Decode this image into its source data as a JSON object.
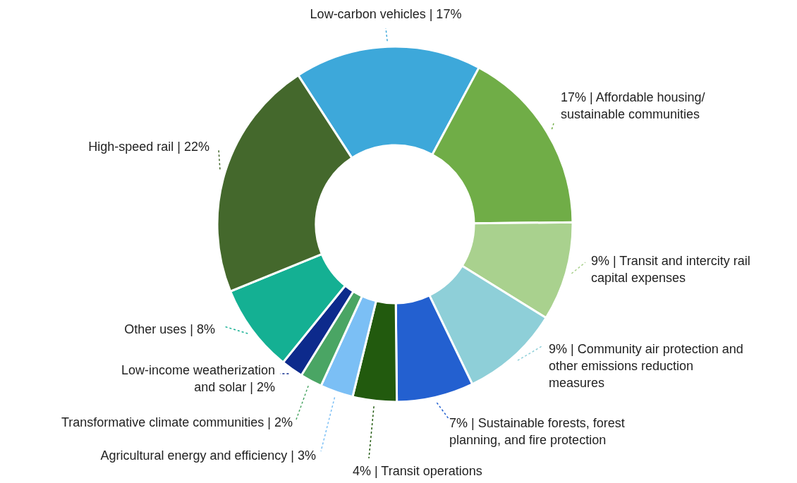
{
  "chart_data": {
    "type": "donut",
    "categories": [
      "Low-carbon vehicles | 17%",
      "17% | Affordable housing/\nsustainable communities",
      "9% | Transit and intercity rail\ncapital expenses",
      "9% | Community air protection and\nother emissions reduction\nmeasures",
      "7% | Sustainable forests, forest\nplanning, and fire protection",
      "4% | Transit operations",
      "Agricultural energy and efficiency | 3%",
      "Transformative climate communities | 2%",
      "Low-income weatherization\nand solar | 2%",
      "Other uses | 8%",
      "High-speed rail | 22%"
    ],
    "values": [
      17,
      17,
      9,
      9,
      7,
      4,
      3,
      2,
      2,
      8,
      22
    ],
    "colors": [
      "#3da8da",
      "#70ad47",
      "#a9d18e",
      "#8ecfd8",
      "#2360d0",
      "#225a0e",
      "#7bbff5",
      "#4aa564",
      "#0d2a8c",
      "#14b093",
      "#44682c"
    ]
  }
}
